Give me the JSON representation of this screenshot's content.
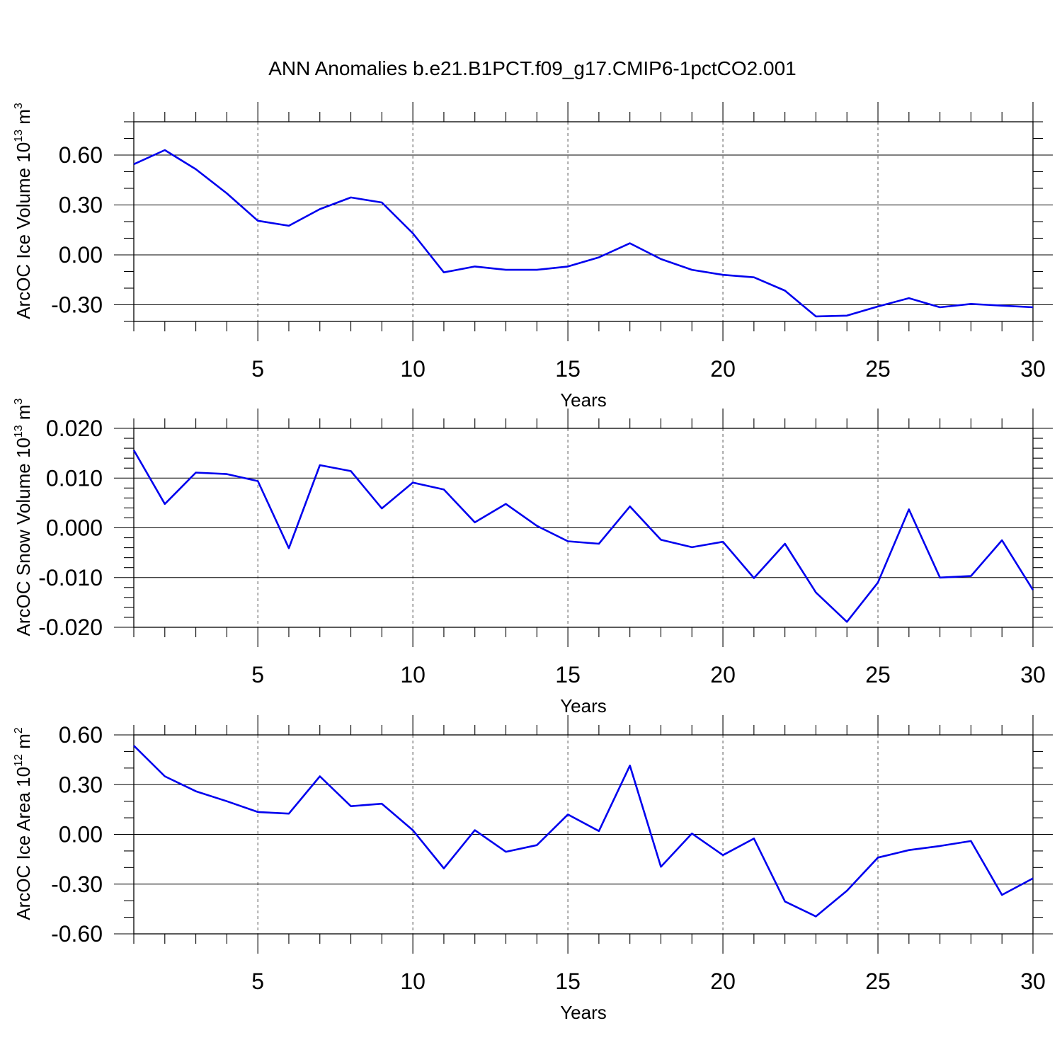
{
  "figure": {
    "title": "ANN Anomalies b.e21.B1PCT.f09_g17.CMIP6-1pctCO2.001"
  },
  "chart_data": [
    {
      "type": "line",
      "xlabel": "Years",
      "ylabel": {
        "pre": "ArcOC Ice Volume 10",
        "exp": "13",
        "mid": " m",
        "unit_exp": "3"
      },
      "xlim": [
        1,
        30
      ],
      "ylim": [
        -0.4,
        0.8
      ],
      "xticks": [
        5,
        10,
        15,
        20,
        25,
        30
      ],
      "xtick_labels": [
        "5",
        "10",
        "15",
        "20",
        "25",
        "30"
      ],
      "yticks": [
        -0.3,
        0.0,
        0.3,
        0.6
      ],
      "ytick_labels": [
        "-0.30",
        "0.00",
        "0.30",
        "0.60"
      ],
      "yminor_step": 0.1,
      "vgrid": [
        5,
        10,
        15,
        20,
        25
      ],
      "hgrid": [
        -0.3,
        0.0,
        0.3,
        0.6
      ],
      "line_color": "#0000ee",
      "x": [
        1,
        2,
        3,
        4,
        5,
        6,
        7,
        8,
        9,
        10,
        11,
        12,
        13,
        14,
        15,
        16,
        17,
        18,
        19,
        20,
        21,
        22,
        23,
        24,
        25,
        26,
        27,
        28,
        29,
        30
      ],
      "y": [
        0.545,
        0.63,
        0.515,
        0.37,
        0.205,
        0.175,
        0.275,
        0.345,
        0.315,
        0.13,
        -0.105,
        -0.07,
        -0.09,
        -0.09,
        -0.07,
        -0.015,
        0.07,
        -0.025,
        -0.09,
        -0.12,
        -0.135,
        -0.215,
        -0.37,
        -0.365,
        -0.31,
        -0.26,
        -0.315,
        -0.295,
        -0.305,
        -0.315
      ]
    },
    {
      "type": "line",
      "xlabel": "Years",
      "ylabel": {
        "pre": "ArcOC Snow Volume 10",
        "exp": "13",
        "mid": " m",
        "unit_exp": "3"
      },
      "xlim": [
        1,
        30
      ],
      "ylim": [
        -0.02,
        0.02
      ],
      "xticks": [
        5,
        10,
        15,
        20,
        25,
        30
      ],
      "xtick_labels": [
        "5",
        "10",
        "15",
        "20",
        "25",
        "30"
      ],
      "yticks": [
        -0.02,
        -0.01,
        0.0,
        0.01,
        0.02
      ],
      "ytick_labels": [
        "-0.020",
        "-0.010",
        "0.000",
        "0.010",
        "0.020"
      ],
      "yminor_step": 0.002,
      "vgrid": [
        5,
        10,
        15,
        20,
        25
      ],
      "hgrid": [
        -0.01,
        0.0,
        0.01
      ],
      "line_color": "#0000ee",
      "x": [
        1,
        2,
        3,
        4,
        5,
        6,
        7,
        8,
        9,
        10,
        11,
        12,
        13,
        14,
        15,
        16,
        17,
        18,
        19,
        20,
        21,
        22,
        23,
        24,
        25,
        26,
        27,
        28,
        29,
        30
      ],
      "y": [
        0.0156,
        0.0048,
        0.0111,
        0.0108,
        0.0094,
        -0.0041,
        0.0126,
        0.0114,
        0.0039,
        0.0091,
        0.0077,
        0.0011,
        0.0048,
        0.0004,
        -0.0027,
        -0.0032,
        0.0043,
        -0.0024,
        -0.0039,
        -0.0028,
        -0.0101,
        -0.0032,
        -0.013,
        -0.0189,
        -0.011,
        0.0037,
        -0.01,
        -0.0097,
        -0.0025,
        -0.0125
      ]
    },
    {
      "type": "line",
      "xlabel": "Years",
      "ylabel": {
        "pre": "ArcOC Ice Area 10",
        "exp": "12",
        "mid": " m",
        "unit_exp": "2"
      },
      "xlim": [
        1,
        30
      ],
      "ylim": [
        -0.6,
        0.6
      ],
      "xticks": [
        5,
        10,
        15,
        20,
        25,
        30
      ],
      "xtick_labels": [
        "5",
        "10",
        "15",
        "20",
        "25",
        "30"
      ],
      "yticks": [
        -0.6,
        -0.3,
        0.0,
        0.3,
        0.6
      ],
      "ytick_labels": [
        "-0.60",
        "-0.30",
        "0.00",
        "0.30",
        "0.60"
      ],
      "yminor_step": 0.1,
      "vgrid": [
        5,
        10,
        15,
        20,
        25
      ],
      "hgrid": [
        -0.3,
        0.0,
        0.3
      ],
      "line_color": "#0000ee",
      "x": [
        1,
        2,
        3,
        4,
        5,
        6,
        7,
        8,
        9,
        10,
        11,
        12,
        13,
        14,
        15,
        16,
        17,
        18,
        19,
        20,
        21,
        22,
        23,
        24,
        25,
        26,
        27,
        28,
        29,
        30
      ],
      "y": [
        0.535,
        0.35,
        0.26,
        0.2,
        0.135,
        0.125,
        0.35,
        0.17,
        0.185,
        0.025,
        -0.205,
        0.025,
        -0.105,
        -0.065,
        0.12,
        0.02,
        0.415,
        -0.195,
        0.005,
        -0.125,
        -0.025,
        -0.405,
        -0.495,
        -0.34,
        -0.14,
        -0.095,
        -0.07,
        -0.04,
        -0.365,
        -0.265
      ]
    }
  ]
}
